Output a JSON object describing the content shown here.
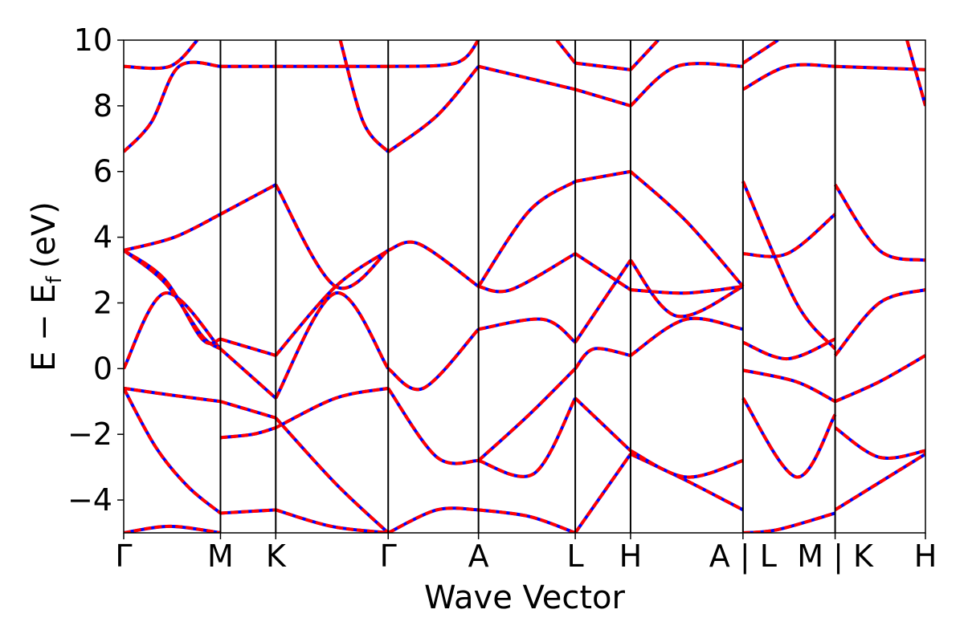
{
  "chart_data": {
    "type": "line",
    "xlabel": "Wave Vector",
    "ylabel": "E − E",
    "ylabel_sub": "f",
    "ylabel_unit": "(eV)",
    "ylim": [
      -5,
      10
    ],
    "yticks": [
      -4,
      -2,
      0,
      2,
      4,
      6,
      8,
      10
    ],
    "xlim": [
      0,
      8.7
    ],
    "xticks": [
      {
        "x": 0.0,
        "label": "Γ"
      },
      {
        "x": 1.05,
        "label": "M"
      },
      {
        "x": 1.65,
        "label": "K"
      },
      {
        "x": 2.87,
        "label": "Γ"
      },
      {
        "x": 3.85,
        "label": "A"
      },
      {
        "x": 4.9,
        "label": "L"
      },
      {
        "x": 5.5,
        "label": "H"
      },
      {
        "x": 6.72,
        "label": "A | L"
      },
      {
        "x": 7.72,
        "label": "M | K"
      },
      {
        "x": 8.7,
        "label": "H"
      }
    ],
    "series_style": {
      "base_color": "#0000ff",
      "overlay_color": "#ff0000",
      "overlay_dash": "dashed"
    },
    "segments": [
      {
        "range": [
          0,
          1.05
        ],
        "bands": [
          {
            "x": [
              0,
              0.5,
              1.05
            ],
            "y": [
              -5.0,
              -4.8,
              -5.0
            ]
          },
          {
            "x": [
              0,
              0.35,
              0.7,
              1.05
            ],
            "y": [
              -0.6,
              -2.4,
              -3.6,
              -4.4
            ]
          },
          {
            "x": [
              0,
              0.5,
              1.05
            ],
            "y": [
              -0.6,
              -0.8,
              -1.0
            ]
          },
          {
            "x": [
              0,
              0.45,
              1.05
            ],
            "y": [
              0.0,
              2.3,
              0.6
            ]
          },
          {
            "x": [
              0,
              0.45,
              0.85,
              1.05
            ],
            "y": [
              3.6,
              2.6,
              1.0,
              0.6
            ]
          },
          {
            "x": [
              0,
              0.45,
              0.85,
              1.05
            ],
            "y": [
              3.6,
              2.7,
              0.9,
              0.9
            ]
          },
          {
            "x": [
              0,
              0.55,
              1.05
            ],
            "y": [
              3.6,
              4.0,
              4.7
            ]
          },
          {
            "x": [
              0,
              0.3,
              0.6,
              1.05
            ],
            "y": [
              6.6,
              7.5,
              9.2,
              9.2
            ]
          },
          {
            "x": [
              0,
              0.5,
              0.8
            ],
            "y": [
              9.2,
              9.2,
              10.0
            ]
          }
        ]
      },
      {
        "range": [
          1.05,
          1.65
        ],
        "bands": [
          {
            "x": [
              1.05,
              1.65
            ],
            "y": [
              -4.4,
              -4.3
            ]
          },
          {
            "x": [
              1.05,
              1.4,
              1.65
            ],
            "y": [
              -2.1,
              -2.0,
              -1.8
            ]
          },
          {
            "x": [
              1.05,
              1.65
            ],
            "y": [
              -1.0,
              -1.5
            ]
          },
          {
            "x": [
              1.05,
              1.65
            ],
            "y": [
              0.6,
              -0.9
            ]
          },
          {
            "x": [
              1.05,
              1.65
            ],
            "y": [
              0.9,
              0.4
            ]
          },
          {
            "x": [
              1.05,
              1.65
            ],
            "y": [
              4.7,
              5.6
            ]
          },
          {
            "x": [
              1.05,
              1.65
            ],
            "y": [
              9.2,
              9.2
            ]
          }
        ]
      },
      {
        "range": [
          1.65,
          2.87
        ],
        "bands": [
          {
            "x": [
              1.65,
              2.25,
              2.87
            ],
            "y": [
              -4.3,
              -4.8,
              -5.0
            ]
          },
          {
            "x": [
              1.65,
              2.3,
              2.87
            ],
            "y": [
              -1.5,
              -3.5,
              -5.0
            ]
          },
          {
            "x": [
              1.65,
              2.3,
              2.87
            ],
            "y": [
              -1.8,
              -0.9,
              -0.6
            ]
          },
          {
            "x": [
              1.65,
              2.3,
              2.87
            ],
            "y": [
              -0.9,
              2.3,
              0.0
            ]
          },
          {
            "x": [
              1.65,
              2.3,
              2.87
            ],
            "y": [
              0.4,
              2.5,
              3.6
            ]
          },
          {
            "x": [
              1.65,
              2.3,
              2.87
            ],
            "y": [
              5.6,
              2.5,
              3.6
            ]
          },
          {
            "x": [
              1.65,
              2.87
            ],
            "y": [
              9.2,
              9.2
            ]
          },
          {
            "x": [
              2.35,
              2.6,
              2.87
            ],
            "y": [
              10.0,
              7.5,
              6.6
            ]
          }
        ]
      },
      {
        "range": [
          2.87,
          3.85
        ],
        "bands": [
          {
            "x": [
              2.87,
              3.4,
              3.85
            ],
            "y": [
              -5.0,
              -4.3,
              -4.3
            ]
          },
          {
            "x": [
              2.87,
              3.4,
              3.85
            ],
            "y": [
              -0.6,
              -2.7,
              -2.8
            ]
          },
          {
            "x": [
              2.87,
              3.25,
              3.85
            ],
            "y": [
              0.0,
              -0.6,
              1.2
            ]
          },
          {
            "x": [
              2.87,
              3.2,
              3.85
            ],
            "y": [
              3.6,
              3.8,
              2.5
            ]
          },
          {
            "x": [
              2.87,
              3.4,
              3.85
            ],
            "y": [
              6.6,
              7.7,
              9.2
            ]
          },
          {
            "x": [
              2.87,
              3.6,
              3.85
            ],
            "y": [
              9.2,
              9.3,
              10.0
            ]
          }
        ]
      },
      {
        "range": [
          3.85,
          4.9
        ],
        "bands": [
          {
            "x": [
              3.85,
              4.4,
              4.9
            ],
            "y": [
              -4.3,
              -4.5,
              -5.0
            ]
          },
          {
            "x": [
              3.85,
              4.45,
              4.9
            ],
            "y": [
              -2.8,
              -3.2,
              -0.9
            ]
          },
          {
            "x": [
              3.85,
              4.4,
              4.9
            ],
            "y": [
              -2.8,
              -1.4,
              0.0
            ]
          },
          {
            "x": [
              3.85,
              4.55,
              4.9
            ],
            "y": [
              1.2,
              1.5,
              0.8
            ]
          },
          {
            "x": [
              3.85,
              4.2,
              4.9
            ],
            "y": [
              2.5,
              2.4,
              3.5
            ]
          },
          {
            "x": [
              3.85,
              4.4,
              4.9
            ],
            "y": [
              2.5,
              4.8,
              5.7
            ]
          },
          {
            "x": [
              3.85,
              4.9
            ],
            "y": [
              9.2,
              8.5
            ]
          },
          {
            "x": [
              4.7,
              4.9
            ],
            "y": [
              10.0,
              9.3
            ]
          }
        ]
      },
      {
        "range": [
          4.9,
          5.5
        ],
        "bands": [
          {
            "x": [
              4.9,
              5.5
            ],
            "y": [
              -5.0,
              -2.6
            ]
          },
          {
            "x": [
              4.9,
              5.5
            ],
            "y": [
              -0.9,
              -2.5
            ]
          },
          {
            "x": [
              4.9,
              5.1,
              5.5
            ],
            "y": [
              0.0,
              0.6,
              0.4
            ]
          },
          {
            "x": [
              4.9,
              5.5
            ],
            "y": [
              0.8,
              3.3
            ]
          },
          {
            "x": [
              4.9,
              5.5
            ],
            "y": [
              3.5,
              2.4
            ]
          },
          {
            "x": [
              4.9,
              5.5
            ],
            "y": [
              5.7,
              6.0
            ]
          },
          {
            "x": [
              4.9,
              5.5
            ],
            "y": [
              8.5,
              8.0
            ]
          },
          {
            "x": [
              4.9,
              5.5
            ],
            "y": [
              9.3,
              9.1
            ]
          }
        ]
      },
      {
        "range": [
          5.5,
          6.72
        ],
        "bands": [
          {
            "x": [
              5.5,
              6.1,
              6.72
            ],
            "y": [
              -2.6,
              -3.4,
              -4.3
            ]
          },
          {
            "x": [
              5.5,
              6.1,
              6.72
            ],
            "y": [
              -2.5,
              -3.3,
              -2.8
            ]
          },
          {
            "x": [
              5.5,
              6.1,
              6.72
            ],
            "y": [
              0.4,
              1.5,
              1.2
            ]
          },
          {
            "x": [
              5.5,
              6.0,
              6.72
            ],
            "y": [
              3.3,
              1.6,
              2.5
            ]
          },
          {
            "x": [
              5.5,
              6.1,
              6.72
            ],
            "y": [
              2.4,
              2.3,
              2.5
            ]
          },
          {
            "x": [
              5.5,
              6.1,
              6.72
            ],
            "y": [
              6.0,
              4.5,
              2.5
            ]
          },
          {
            "x": [
              5.5,
              6.0,
              6.72
            ],
            "y": [
              8.0,
              9.2,
              9.2
            ]
          },
          {
            "x": [
              5.5,
              5.8
            ],
            "y": [
              9.1,
              10.0
            ]
          }
        ]
      },
      {
        "range": [
          6.72,
          7.72
        ],
        "bands": [
          {
            "x": [
              6.72,
              7.1,
              7.72
            ],
            "y": [
              -5.0,
              -4.9,
              -4.4
            ]
          },
          {
            "x": [
              6.72,
              7.3,
              7.72
            ],
            "y": [
              -0.9,
              -3.3,
              -1.4
            ]
          },
          {
            "x": [
              6.72,
              7.3,
              7.72
            ],
            "y": [
              -0.05,
              -0.4,
              -1.0
            ]
          },
          {
            "x": [
              6.72,
              7.2,
              7.72
            ],
            "y": [
              0.8,
              0.3,
              0.9
            ]
          },
          {
            "x": [
              6.72,
              7.2,
              7.72
            ],
            "y": [
              3.5,
              3.5,
              4.7
            ]
          },
          {
            "x": [
              6.72,
              7.3,
              7.72
            ],
            "y": [
              5.7,
              2.0,
              0.6
            ]
          },
          {
            "x": [
              6.72,
              7.2,
              7.72
            ],
            "y": [
              8.5,
              9.2,
              9.2
            ]
          },
          {
            "x": [
              6.72,
              7.1
            ],
            "y": [
              9.3,
              10.0
            ]
          }
        ]
      },
      {
        "range": [
          7.72,
          8.7
        ],
        "bands": [
          {
            "x": [
              7.72,
              8.7
            ],
            "y": [
              -4.3,
              -2.6
            ]
          },
          {
            "x": [
              7.72,
              8.2,
              8.7
            ],
            "y": [
              -1.8,
              -2.7,
              -2.5
            ]
          },
          {
            "x": [
              7.72,
              8.2,
              8.7
            ],
            "y": [
              -1.0,
              -0.4,
              0.4
            ]
          },
          {
            "x": [
              7.72,
              8.2,
              8.7
            ],
            "y": [
              0.4,
              2.0,
              2.4
            ]
          },
          {
            "x": [
              7.72,
              8.2,
              8.7
            ],
            "y": [
              5.6,
              3.6,
              3.3
            ]
          },
          {
            "x": [
              7.72,
              8.7
            ],
            "y": [
              9.2,
              9.1
            ]
          },
          {
            "x": [
              8.5,
              8.7
            ],
            "y": [
              10.0,
              8.0
            ]
          }
        ]
      }
    ]
  }
}
